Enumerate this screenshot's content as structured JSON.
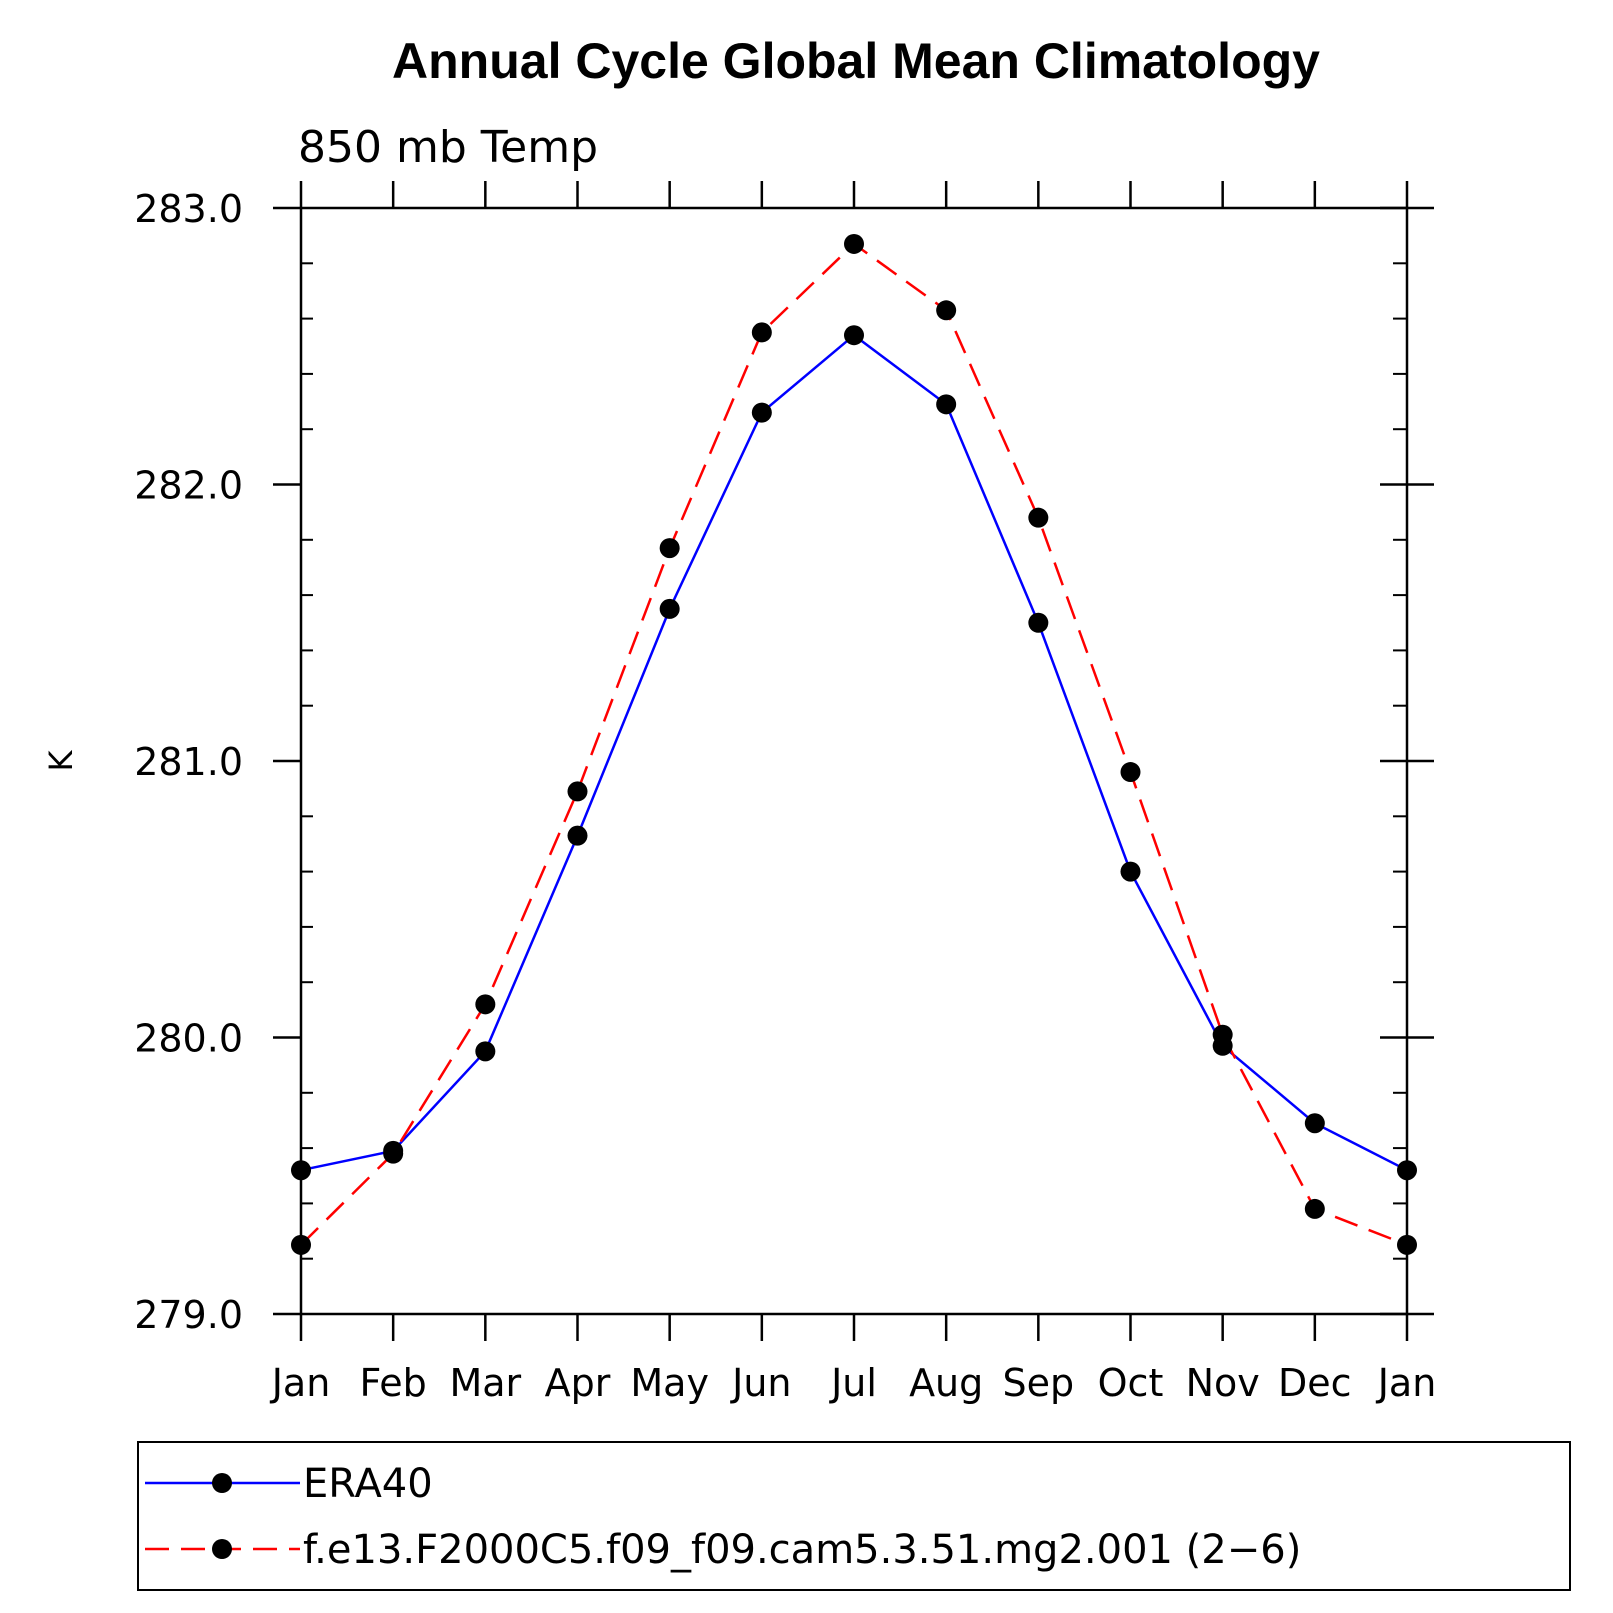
{
  "chart_data": {
    "type": "line",
    "title": "Annual Cycle Global Mean Climatology",
    "subtitle": "850 mb Temp",
    "xlabel": "",
    "ylabel": "K",
    "categories": [
      "Jan",
      "Feb",
      "Mar",
      "Apr",
      "May",
      "Jun",
      "Jul",
      "Aug",
      "Sep",
      "Oct",
      "Nov",
      "Dec",
      "Jan"
    ],
    "ylim": [
      279.0,
      283.0
    ],
    "yticks": [
      "279.0",
      "280.0",
      "281.0",
      "282.0",
      "283.0"
    ],
    "y_minor_step": 0.2,
    "grid": false,
    "legend_position": "bottom",
    "series": [
      {
        "name": "ERA40",
        "color": "#0000ff",
        "dash": "solid",
        "marker": "circle",
        "values": [
          279.52,
          279.59,
          279.95,
          280.73,
          281.55,
          282.26,
          282.54,
          282.29,
          281.5,
          280.6,
          279.97,
          279.69,
          279.52
        ]
      },
      {
        "name": "f.e13.F2000C5.f09_f09.cam5.3.51.mg2.001 (2−6)",
        "color": "#ff0000",
        "dash": "dashed",
        "marker": "circle",
        "values": [
          279.25,
          279.58,
          280.12,
          280.89,
          281.77,
          282.55,
          282.87,
          282.63,
          281.88,
          280.96,
          280.01,
          279.38,
          279.25
        ]
      }
    ]
  }
}
